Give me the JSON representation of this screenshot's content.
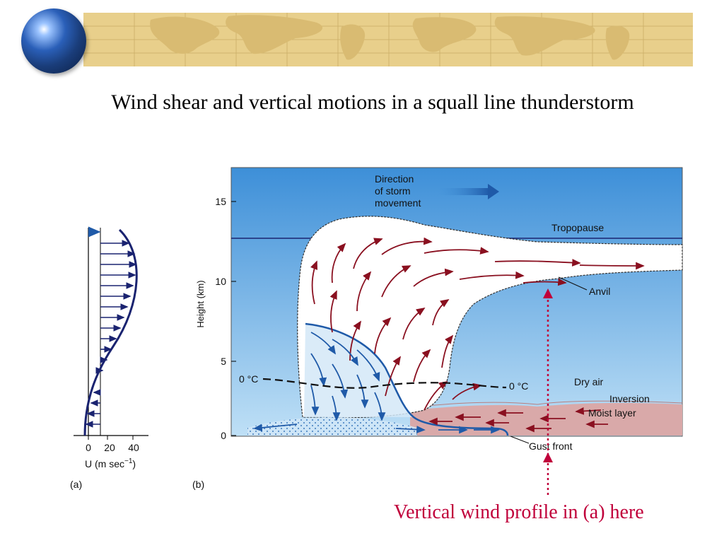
{
  "slide": {
    "title": "Wind shear and vertical motions in a squall line thunderstorm",
    "caption": "Vertical wind profile in (a) here"
  },
  "panel_a": {
    "letter": "(a)",
    "ticks": [
      "0",
      "20",
      "40"
    ],
    "xlabel_main": "U (m sec",
    "xlabel_exp": "−1",
    "xlabel_close": ")"
  },
  "panel_b": {
    "letter": "(b)",
    "ylabel": "Height (km)",
    "yticks": [
      "15",
      "10",
      "5",
      "0"
    ],
    "storm_direction": [
      "Direction",
      "of storm",
      "movement"
    ],
    "labels": {
      "tropopause": "Tropopause",
      "anvil": "Anvil",
      "zero_c_left": "0 °C",
      "zero_c_right": "0 °C",
      "dry_air": "Dry air",
      "inversion": "Inversion",
      "moist_layer": "Moist layer",
      "gust_front": "Gust front"
    }
  },
  "colors": {
    "sky_top": "#3d8fd8",
    "sky_bottom": "#bfe0f6",
    "moist_layer": "#d9a9a9",
    "cloud": "#ffffff",
    "updraft_arrow": "#8a1020",
    "downdraft_arrow": "#1f5aa8",
    "profile_line": "#1a2370",
    "caption": "#c0003a",
    "banner": "#e8cf8b"
  }
}
